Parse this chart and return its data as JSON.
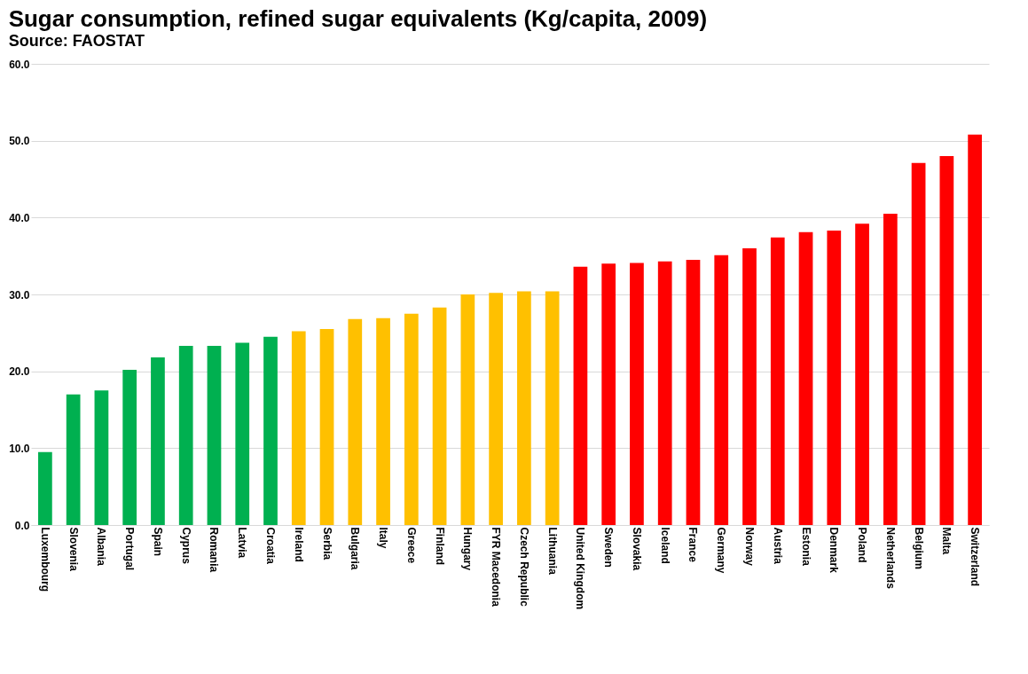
{
  "chart_data": {
    "type": "bar",
    "title": "Sugar consumption, refined sugar equivalents (Kg/capita, 2009)",
    "subtitle": "Source: FAOSTAT",
    "categories": [
      "Luxembourg",
      "Slovenia",
      "Albania",
      "Portugal",
      "Spain",
      "Cyprus",
      "Romania",
      "Latvia",
      "Croatia",
      "Ireland",
      "Serbia",
      "Bulgaria",
      "Italy",
      "Greece",
      "Finland",
      "Hungary",
      "FYR Macedonia",
      "Czech Republic",
      "Lithuania",
      "United Kingdom",
      "Sweden",
      "Slovakia",
      "Iceland",
      "France",
      "Germany",
      "Norway",
      "Austria",
      "Estonia",
      "Denmark",
      "Poland",
      "Netherlands",
      "Belgium",
      "Malta",
      "Switzerland"
    ],
    "values": [
      9.5,
      17.0,
      17.5,
      20.2,
      21.8,
      23.3,
      23.3,
      23.7,
      24.5,
      25.2,
      25.5,
      26.8,
      26.9,
      27.5,
      28.3,
      30.0,
      30.2,
      30.4,
      30.4,
      33.6,
      34.0,
      34.1,
      34.3,
      34.5,
      35.1,
      36.0,
      37.4,
      38.1,
      38.3,
      39.2,
      40.5,
      47.1,
      48.0,
      50.8
    ],
    "colors": [
      "#00b050",
      "#00b050",
      "#00b050",
      "#00b050",
      "#00b050",
      "#00b050",
      "#00b050",
      "#00b050",
      "#00b050",
      "#ffc000",
      "#ffc000",
      "#ffc000",
      "#ffc000",
      "#ffc000",
      "#ffc000",
      "#ffc000",
      "#ffc000",
      "#ffc000",
      "#ffc000",
      "#ff0000",
      "#ff0000",
      "#ff0000",
      "#ff0000",
      "#ff0000",
      "#ff0000",
      "#ff0000",
      "#ff0000",
      "#ff0000",
      "#ff0000",
      "#ff0000",
      "#ff0000",
      "#ff0000",
      "#ff0000",
      "#ff0000"
    ],
    "ylim": [
      0,
      60
    ],
    "yticks": [
      {
        "value": 0,
        "label": "0.0"
      },
      {
        "value": 10,
        "label": "10.0"
      },
      {
        "value": 20,
        "label": "20.0"
      },
      {
        "value": 30,
        "label": "30.0"
      },
      {
        "value": 40,
        "label": "40.0"
      },
      {
        "value": 50,
        "label": "50.0"
      },
      {
        "value": 60,
        "label": "60.0"
      }
    ],
    "grid": "y"
  }
}
